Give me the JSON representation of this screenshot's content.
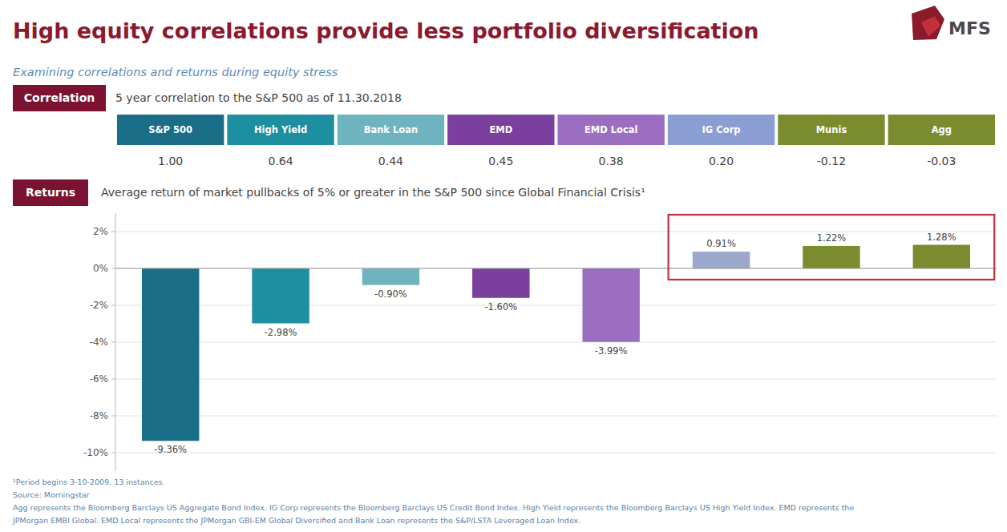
{
  "chart_data": [
    {
      "type": "bar",
      "title": "High equity correlations provide less portfolio diversification",
      "subtitle": "Examining correlations and returns during equity stress",
      "categories": [
        "S&P 500",
        "High Yield",
        "Bank Loan",
        "EMD",
        "EMD Local",
        "IG Corp",
        "Munis",
        "Agg"
      ],
      "values": [
        -9.36,
        -2.98,
        -0.9,
        -1.6,
        -3.99,
        0.91,
        1.22,
        1.28
      ],
      "value_labels": [
        "-9.36%",
        "-2.98%",
        "-0.90%",
        "-1.60%",
        "-3.99%",
        "0.91%",
        "1.22%",
        "1.28%"
      ],
      "colors": [
        "#1A6E87",
        "#1E8FA0",
        "#6DB3C0",
        "#7B3F9E",
        "#9B6EC2",
        "#9BA8CC",
        "#7A8C2E",
        "#7A8C2E"
      ],
      "ylim": [
        -11,
        3
      ],
      "yticks": [
        {
          "value": -10,
          "label": "-10%"
        },
        {
          "value": -8,
          "label": "-8%"
        },
        {
          "value": -6,
          "label": "-6%"
        },
        {
          "value": -4,
          "label": "-4%"
        },
        {
          "value": -2,
          "label": "-2%"
        },
        {
          "value": 0,
          "label": "0%"
        },
        {
          "value": 2,
          "label": "2%"
        }
      ],
      "grid": true,
      "data_labels": true,
      "tick_labels": "y",
      "annotations": [
        {
          "text": "MFS"
        },
        {
          "text": "Returns"
        },
        {
          "text": "Average return of market pullbacks of 5% or greater in the S&P 500 since Global Financial Crisis¹"
        },
        {
          "text": "¹Period begins 3-10-2009.  13 instances."
        },
        {
          "text": "Source: Morningstar"
        },
        {
          "text": "Agg represents the Bloomberg Barclays US Aggregate Bond Index.  IG Corp represents the Bloomberg Barclays US Credit Bond Index.  High Yield represents the Bloomberg Barclays US High Yield Index.  EMD represents the"
        },
        {
          "text": "JPMorgan EMBI Global.  EMD Local represents the JPMorgan GBI-EM Global Diversified and Bank Loan represents the S&P/LSTA Leveraged Loan Index."
        },
        {
          "categories": [
            "IG Corp",
            "Munis",
            "Agg"
          ],
          "color": "#C0313A"
        }
      ]
    },
    {
      "type": "table",
      "title": "Correlation",
      "subtitle": "5 year correlation to the S&P 500 as of 11.30.2018",
      "categories": [
        "S&P 500",
        "High Yield",
        "Bank Loan",
        "EMD",
        "EMD Local",
        "IG Corp",
        "Munis",
        "Agg"
      ],
      "colors": [
        "#1A6E87",
        "#1E8FA0",
        "#6DB3C0",
        "#7B3F9E",
        "#9B6EC2",
        "#8B9ED4",
        "#7A8C2E",
        "#7A8C2E"
      ],
      "values": [
        1.0,
        0.64,
        0.44,
        0.45,
        0.38,
        0.2,
        -0.12,
        -0.03
      ],
      "value_labels": [
        "1.00",
        "0.64",
        "0.44",
        "0.45",
        "0.38",
        "0.20",
        "-0.12",
        "-0.03"
      ]
    }
  ]
}
